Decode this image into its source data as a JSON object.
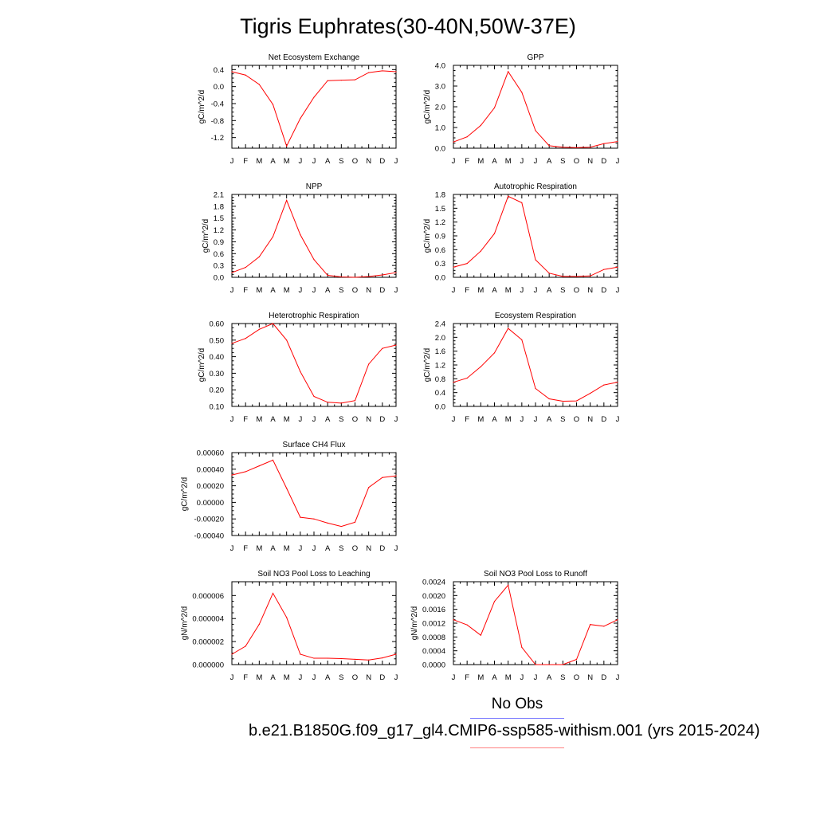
{
  "title": "Tigris Euphrates(30-40N,50W-37E)",
  "legend": {
    "obs_label": "No Obs",
    "case_label": "b.e21.B1850G.f09_g17_gl4.CMIP6-ssp585-withism.001 (yrs 2015-2024)",
    "obs_color": "#8080ff",
    "model_color": "#ff8080"
  },
  "line_color": "#ff0000",
  "chart_data": [
    {
      "type": "line",
      "title": "Net Ecosystem Exchange",
      "ylabel": "gC/m^2/d",
      "xlabel": "",
      "x": [
        "J",
        "F",
        "M",
        "A",
        "M",
        "J",
        "J",
        "A",
        "S",
        "O",
        "N",
        "D",
        "J"
      ],
      "ylim": [
        -1.45,
        0.5
      ],
      "yticks": [
        0.4,
        0.0,
        -0.4,
        -0.8,
        -1.2
      ],
      "ytick_labels": [
        "0.4",
        "0.0",
        "-0.4",
        "-0.8",
        "-1.2"
      ],
      "series": [
        {
          "values": [
            0.35,
            0.27,
            0.05,
            -0.42,
            -1.4,
            -0.75,
            -0.25,
            0.14,
            0.15,
            0.16,
            0.33,
            0.37,
            0.35
          ]
        }
      ]
    },
    {
      "type": "line",
      "title": "GPP",
      "ylabel": "gC/m^2/d",
      "xlabel": "",
      "x": [
        "J",
        "F",
        "M",
        "A",
        "M",
        "J",
        "J",
        "A",
        "S",
        "O",
        "N",
        "D",
        "J"
      ],
      "ylim": [
        0.0,
        4.0
      ],
      "yticks": [
        0.0,
        1.0,
        2.0,
        3.0,
        4.0
      ],
      "ytick_labels": [
        "0.0",
        "1.0",
        "2.0",
        "3.0",
        "4.0"
      ],
      "series": [
        {
          "values": [
            0.3,
            0.55,
            1.1,
            1.95,
            3.7,
            2.7,
            0.85,
            0.12,
            0.05,
            0.03,
            0.05,
            0.22,
            0.32
          ]
        }
      ]
    },
    {
      "type": "line",
      "title": "NPP",
      "ylabel": "gC/m^2/d",
      "xlabel": "",
      "x": [
        "J",
        "F",
        "M",
        "A",
        "M",
        "J",
        "J",
        "A",
        "S",
        "O",
        "N",
        "D",
        "J"
      ],
      "ylim": [
        0.0,
        2.1
      ],
      "yticks": [
        0.0,
        0.3,
        0.6,
        0.9,
        1.2,
        1.5,
        1.8,
        2.1
      ],
      "ytick_labels": [
        "0.0",
        "0.3",
        "0.6",
        "0.9",
        "1.2",
        "1.5",
        "1.8",
        "2.1"
      ],
      "series": [
        {
          "values": [
            0.12,
            0.25,
            0.52,
            1.03,
            1.95,
            1.08,
            0.45,
            0.05,
            0.01,
            0.0,
            0.02,
            0.06,
            0.12
          ]
        }
      ]
    },
    {
      "type": "line",
      "title": "Autotrophic Respiration",
      "ylabel": "gC/m^2/d",
      "xlabel": "",
      "x": [
        "J",
        "F",
        "M",
        "A",
        "M",
        "J",
        "J",
        "A",
        "S",
        "O",
        "N",
        "D",
        "J"
      ],
      "ylim": [
        0.0,
        1.8
      ],
      "yticks": [
        0.0,
        0.3,
        0.6,
        0.9,
        1.2,
        1.5,
        1.8
      ],
      "ytick_labels": [
        "0.0",
        "0.3",
        "0.6",
        "0.9",
        "1.2",
        "1.5",
        "1.8"
      ],
      "series": [
        {
          "values": [
            0.22,
            0.3,
            0.57,
            0.95,
            1.76,
            1.62,
            0.38,
            0.09,
            0.02,
            0.02,
            0.03,
            0.17,
            0.22
          ]
        }
      ]
    },
    {
      "type": "line",
      "title": "Heterotrophic Respiration",
      "ylabel": "gC/m^2/d",
      "xlabel": "",
      "x": [
        "J",
        "F",
        "M",
        "A",
        "M",
        "J",
        "J",
        "A",
        "S",
        "O",
        "N",
        "D",
        "J"
      ],
      "ylim": [
        0.1,
        0.6
      ],
      "yticks": [
        0.1,
        0.2,
        0.3,
        0.4,
        0.5,
        0.6
      ],
      "ytick_labels": [
        "0.10",
        "0.20",
        "0.30",
        "0.40",
        "0.50",
        "0.60"
      ],
      "series": [
        {
          "values": [
            0.48,
            0.51,
            0.565,
            0.6,
            0.5,
            0.31,
            0.16,
            0.125,
            0.12,
            0.135,
            0.355,
            0.45,
            0.47
          ]
        }
      ]
    },
    {
      "type": "line",
      "title": "Ecosystem Respiration",
      "ylabel": "gC/m^2/d",
      "xlabel": "",
      "x": [
        "J",
        "F",
        "M",
        "A",
        "M",
        "J",
        "J",
        "A",
        "S",
        "O",
        "N",
        "D",
        "J"
      ],
      "ylim": [
        0.0,
        2.4
      ],
      "yticks": [
        0.0,
        0.4,
        0.8,
        1.2,
        1.6,
        2.0,
        2.4
      ],
      "ytick_labels": [
        "0.0",
        "0.4",
        "0.8",
        "1.2",
        "1.6",
        "2.0",
        "2.4"
      ],
      "series": [
        {
          "values": [
            0.7,
            0.82,
            1.15,
            1.55,
            2.26,
            1.93,
            0.52,
            0.22,
            0.15,
            0.16,
            0.38,
            0.62,
            0.7
          ]
        }
      ]
    },
    {
      "type": "line",
      "title": "Surface CH4 Flux",
      "ylabel": "gC/m^2/d",
      "xlabel": "",
      "x": [
        "J",
        "F",
        "M",
        "A",
        "M",
        "J",
        "J",
        "A",
        "S",
        "O",
        "N",
        "D",
        "J"
      ],
      "ylim": [
        -0.0004,
        0.0006
      ],
      "yticks": [
        -0.0004,
        -0.0002,
        0.0,
        0.0002,
        0.0004,
        0.0006
      ],
      "ytick_labels": [
        "-0.00040",
        "-0.00020",
        "0.00000",
        "0.00020",
        "0.00040",
        "0.00060"
      ],
      "series": [
        {
          "values": [
            0.00033,
            0.00037,
            0.00044,
            0.00051,
            0.00017,
            -0.00018,
            -0.0002,
            -0.00025,
            -0.00029,
            -0.00024,
            0.00018,
            0.0003,
            0.00032
          ]
        }
      ]
    },
    {
      "type": "line",
      "title": "Soil NO3 Pool Loss to Leaching",
      "ylabel": "gN/m^2/d",
      "xlabel": "",
      "x": [
        "J",
        "F",
        "M",
        "A",
        "M",
        "J",
        "J",
        "A",
        "S",
        "O",
        "N",
        "D",
        "J"
      ],
      "ylim": [
        0.0,
        7.2e-06
      ],
      "yticks": [
        0.0,
        2e-06,
        4e-06,
        6e-06
      ],
      "ytick_labels": [
        "0.000000",
        "0.000002",
        "0.000004",
        "0.000006"
      ],
      "series": [
        {
          "values": [
            9e-07,
            1.6e-06,
            3.5e-06,
            6.2e-06,
            4.1e-06,
            9e-07,
            5.5e-07,
            5.5e-07,
            5.2e-07,
            4.6e-07,
            4e-07,
            5.8e-07,
            9e-07
          ]
        }
      ]
    },
    {
      "type": "line",
      "title": "Soil NO3 Pool Loss to Runoff",
      "ylabel": "gN/m^2/d",
      "xlabel": "",
      "x": [
        "J",
        "F",
        "M",
        "A",
        "M",
        "J",
        "J",
        "A",
        "S",
        "O",
        "N",
        "D",
        "J"
      ],
      "ylim": [
        0.0,
        0.0024
      ],
      "yticks": [
        0.0,
        0.0004,
        0.0008,
        0.0012,
        0.0016,
        0.002,
        0.0024
      ],
      "ytick_labels": [
        "0.0000",
        "0.0004",
        "0.0008",
        "0.0012",
        "0.0016",
        "0.0020",
        "0.0024"
      ],
      "series": [
        {
          "values": [
            0.0013,
            0.00115,
            0.00085,
            0.00183,
            0.0023,
            0.0005,
            0.0,
            0.0,
            0.0,
            0.00015,
            0.00116,
            0.00111,
            0.0013
          ]
        }
      ]
    }
  ]
}
